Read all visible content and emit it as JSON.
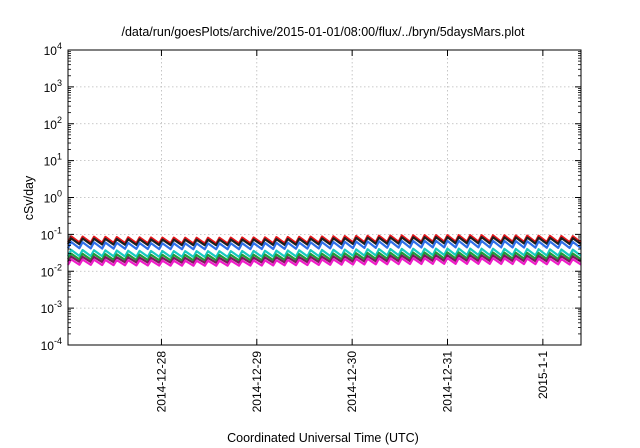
{
  "chart_data": {
    "type": "line",
    "title": "/data/run/goesPlots/archive/2015-01-01/08:00/flux/../bryn/5daysMars.plot",
    "xlabel": "Coordinated Universal Time (UTC)",
    "ylabel": "cSv/day",
    "yscale": "log",
    "ylim_exponents": [
      -4,
      4
    ],
    "y_ticks": [
      {
        "base": "10",
        "exp": "-4"
      },
      {
        "base": "10",
        "exp": "-3"
      },
      {
        "base": "10",
        "exp": "-2"
      },
      {
        "base": "10",
        "exp": "-1"
      },
      {
        "base": "10",
        "exp": "0"
      },
      {
        "base": "10",
        "exp": "1"
      },
      {
        "base": "10",
        "exp": "2"
      },
      {
        "base": "10",
        "exp": "3"
      },
      {
        "base": "10",
        "exp": "4"
      }
    ],
    "x_range_days": [
      0,
      5.38
    ],
    "x_ticks": [
      {
        "label": "2014-12-28",
        "day": 0.98
      },
      {
        "label": "2014-12-29",
        "day": 1.98
      },
      {
        "label": "2014-12-30",
        "day": 2.98
      },
      {
        "label": "2014-12-31",
        "day": 3.98
      },
      {
        "label": "2015-1-1",
        "day": 4.98
      }
    ],
    "grid": true,
    "cycles": 45,
    "series": [
      {
        "color": "#e8161b",
        "peak": 0.088,
        "trough": 0.06
      },
      {
        "color": "#1f1f1f",
        "peak": 0.078,
        "trough": 0.054
      },
      {
        "color": "#2f6fe8",
        "peak": 0.062,
        "trough": 0.042
      },
      {
        "color": "#19c9c0",
        "peak": 0.038,
        "trough": 0.026
      },
      {
        "color": "#1e9c3a",
        "peak": 0.03,
        "trough": 0.021
      },
      {
        "color": "#7a1a5a",
        "peak": 0.025,
        "trough": 0.018
      },
      {
        "color": "#ee1dc8",
        "peak": 0.021,
        "trough": 0.015
      }
    ]
  }
}
